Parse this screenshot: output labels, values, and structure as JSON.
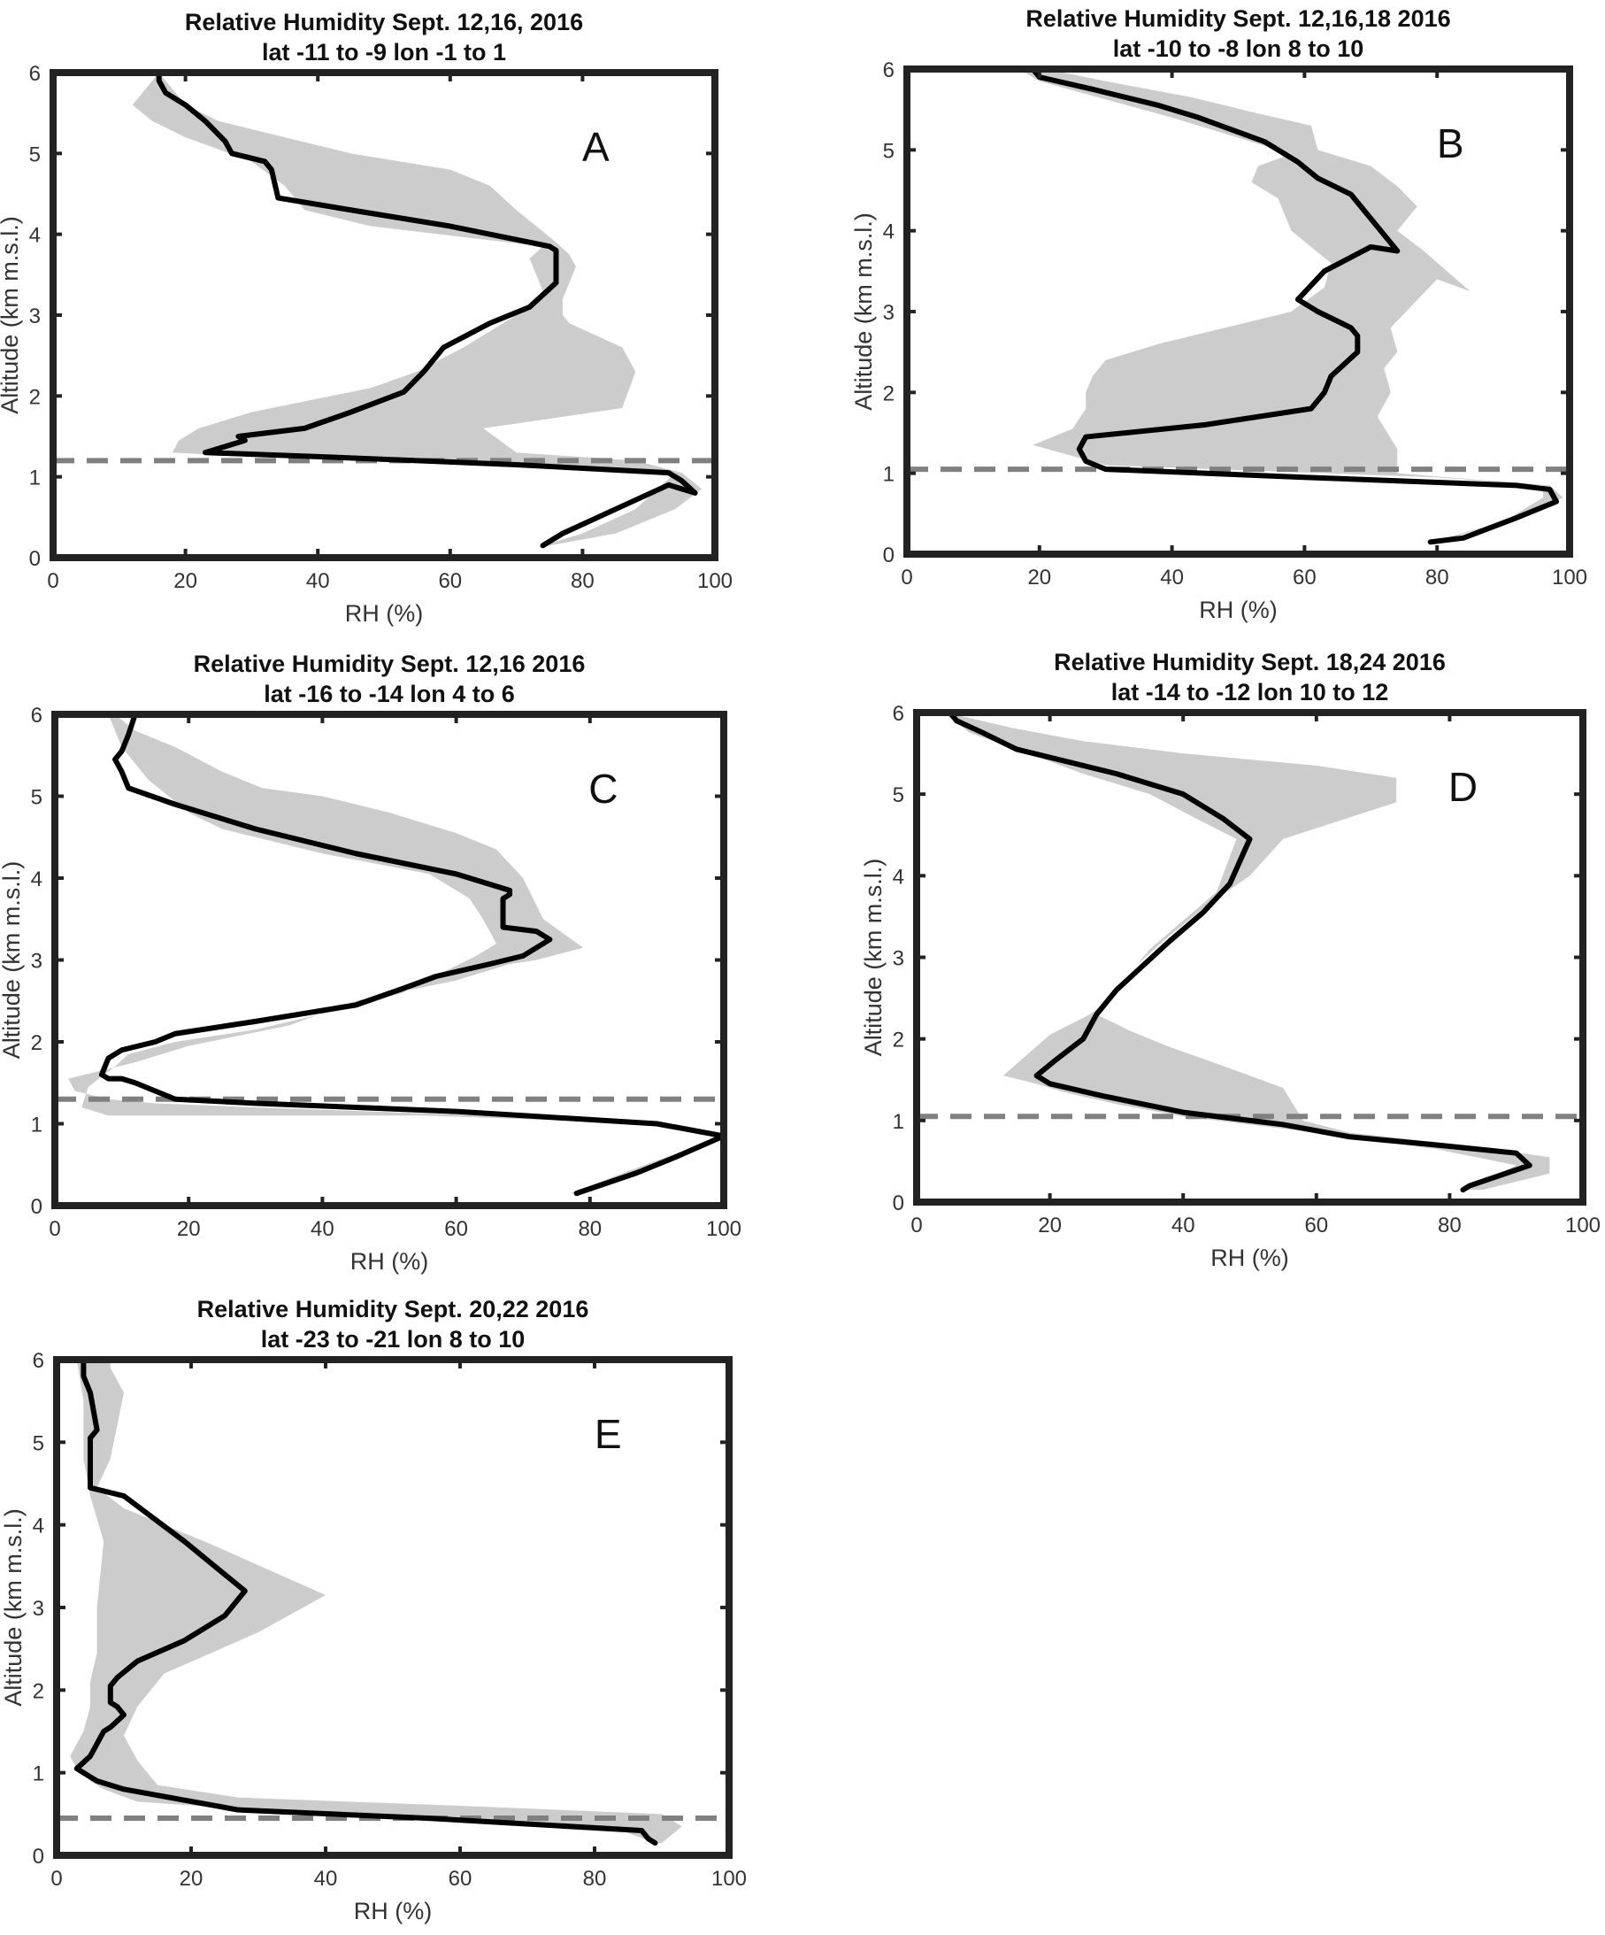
{
  "figure": {
    "background": "#ffffff"
  },
  "style": {
    "envelope_color": "#cccccc",
    "line_color": "#000000",
    "dash_color": "#808080",
    "frame_color": "#222222"
  },
  "chart_data": [
    {
      "type": "line",
      "panel_letter": "A",
      "title": [
        "Relative Humidity Sept. 12,16, 2016",
        "lat -11 to -9 lon -1 to 1"
      ],
      "xlabel": "RH (%)",
      "ylabel": "Altitude (km m.s.l.)",
      "xlim": [
        0,
        100
      ],
      "ylim": [
        0,
        6
      ],
      "xticks": [
        0,
        20,
        40,
        60,
        80,
        100
      ],
      "yticks": [
        0,
        1,
        2,
        3,
        4,
        5,
        6
      ],
      "boundary_layer_top_km": 1.2,
      "series": [
        {
          "kind": "mean",
          "x": [
            74,
            77,
            85,
            93,
            97,
            95,
            93,
            70,
            40,
            23,
            29,
            28,
            38,
            45,
            53,
            56,
            59,
            66,
            72,
            76,
            76,
            76,
            75,
            60,
            45,
            34,
            33,
            32,
            27,
            26,
            23,
            20,
            17,
            16,
            16
          ],
          "y": [
            0.15,
            0.3,
            0.6,
            0.9,
            0.8,
            0.95,
            1.05,
            1.15,
            1.25,
            1.3,
            1.45,
            1.5,
            1.6,
            1.8,
            2.05,
            2.3,
            2.6,
            2.9,
            3.1,
            3.4,
            3.6,
            3.8,
            3.85,
            4.1,
            4.3,
            4.45,
            4.8,
            4.9,
            5.0,
            5.15,
            5.4,
            5.6,
            5.75,
            5.9,
            6.0
          ]
        },
        {
          "kind": "envelope",
          "x_left": [
            74,
            80,
            88,
            92,
            94,
            60,
            30,
            18,
            19,
            22,
            30,
            48,
            55,
            62,
            70,
            74,
            72,
            74,
            48,
            38,
            35,
            30,
            25,
            20,
            15,
            12,
            16
          ],
          "y_left": [
            0.15,
            0.3,
            0.6,
            0.9,
            1.05,
            1.2,
            1.25,
            1.3,
            1.45,
            1.6,
            1.8,
            2.1,
            2.3,
            2.6,
            3.0,
            3.3,
            3.7,
            3.85,
            4.1,
            4.3,
            4.6,
            4.9,
            5.05,
            5.2,
            5.4,
            5.6,
            6.0
          ],
          "x_right": [
            75,
            85,
            94,
            98,
            95,
            88,
            70,
            65,
            86,
            88,
            86,
            78,
            77,
            77,
            78,
            79,
            78,
            76,
            73,
            70,
            68,
            66,
            60,
            45,
            35,
            25,
            20,
            16
          ],
          "y_right": [
            0.15,
            0.3,
            0.6,
            0.85,
            1.05,
            1.2,
            1.3,
            1.6,
            1.85,
            2.3,
            2.6,
            2.9,
            3.0,
            3.2,
            3.4,
            3.6,
            3.75,
            3.9,
            4.1,
            4.3,
            4.45,
            4.6,
            4.8,
            5.0,
            5.2,
            5.4,
            5.6,
            6.0
          ]
        }
      ]
    },
    {
      "type": "line",
      "panel_letter": "B",
      "title": [
        "Relative Humidity Sept. 12,16,18 2016",
        "lat -10 to -8 lon 8 to 10"
      ],
      "xlabel": "RH (%)",
      "ylabel": "Altitude (km m.s.l.)",
      "xlim": [
        0,
        100
      ],
      "ylim": [
        0,
        6
      ],
      "xticks": [
        0,
        20,
        40,
        60,
        80,
        100
      ],
      "yticks": [
        0,
        1,
        2,
        3,
        4,
        5,
        6
      ],
      "boundary_layer_top_km": 1.05,
      "series": [
        {
          "kind": "mean",
          "x": [
            79,
            84,
            92,
            98,
            97,
            92,
            60,
            30,
            27,
            26,
            27,
            45,
            61,
            63,
            64,
            68,
            68,
            67,
            62,
            59,
            63,
            70,
            74,
            67,
            62,
            59,
            58,
            54,
            44,
            38,
            28,
            20,
            19
          ],
          "y": [
            0.15,
            0.2,
            0.45,
            0.65,
            0.8,
            0.85,
            0.95,
            1.05,
            1.15,
            1.3,
            1.45,
            1.6,
            1.8,
            2.0,
            2.2,
            2.5,
            2.7,
            2.8,
            3.0,
            3.15,
            3.5,
            3.8,
            3.75,
            4.45,
            4.65,
            4.85,
            4.9,
            5.1,
            5.4,
            5.55,
            5.75,
            5.9,
            6.0
          ]
        },
        {
          "kind": "envelope",
          "x_left": [
            79,
            90,
            96,
            96,
            80,
            30,
            19,
            25,
            27,
            27,
            28,
            30,
            38,
            48,
            58,
            63,
            64,
            58,
            56,
            52,
            53,
            58,
            40,
            20,
            17
          ],
          "y_left": [
            0.15,
            0.4,
            0.7,
            0.85,
            0.95,
            1.1,
            1.35,
            1.55,
            1.8,
            2.0,
            2.2,
            2.4,
            2.6,
            2.8,
            3.0,
            3.3,
            3.6,
            4.0,
            4.4,
            4.6,
            4.8,
            4.95,
            5.4,
            5.85,
            6.0
          ],
          "x_right": [
            80,
            92,
            99,
            97,
            74,
            74,
            71,
            73,
            72,
            74,
            73,
            80,
            85,
            78,
            74,
            77,
            74,
            70,
            62,
            61,
            53,
            43,
            30,
            21
          ],
          "y_right": [
            0.15,
            0.45,
            0.7,
            0.85,
            1.0,
            1.3,
            1.7,
            2.0,
            2.3,
            2.5,
            2.8,
            3.4,
            3.25,
            3.75,
            4.0,
            4.3,
            4.55,
            4.8,
            5.0,
            5.3,
            5.45,
            5.65,
            5.85,
            6.0
          ]
        }
      ]
    },
    {
      "type": "line",
      "panel_letter": "C",
      "title": [
        "Relative Humidity Sept. 12,16 2016",
        "lat -16 to -14 lon 4 to 6"
      ],
      "xlabel": "RH (%)",
      "ylabel": "Altitude (km m.s.l.)",
      "xlim": [
        0,
        100
      ],
      "ylim": [
        0,
        6
      ],
      "xticks": [
        0,
        20,
        40,
        60,
        80,
        100
      ],
      "yticks": [
        0,
        1,
        2,
        3,
        4,
        5,
        6
      ],
      "boundary_layer_top_km": 1.3,
      "series": [
        {
          "kind": "mean",
          "x": [
            78,
            87,
            93,
            100,
            90,
            60,
            30,
            18,
            15,
            12,
            10,
            8,
            7,
            8,
            10,
            15,
            18,
            30,
            45,
            52,
            57,
            65,
            70,
            74,
            72,
            67,
            67,
            68,
            68,
            60,
            45,
            30,
            18,
            11,
            10,
            9,
            10,
            11,
            12
          ],
          "y": [
            0.15,
            0.4,
            0.6,
            0.85,
            1.0,
            1.15,
            1.25,
            1.3,
            1.4,
            1.5,
            1.55,
            1.55,
            1.6,
            1.8,
            1.9,
            2.0,
            2.1,
            2.25,
            2.45,
            2.65,
            2.8,
            2.95,
            3.05,
            3.25,
            3.35,
            3.4,
            3.75,
            3.8,
            3.85,
            4.05,
            4.3,
            4.6,
            4.9,
            5.1,
            5.3,
            5.45,
            5.55,
            5.75,
            6.0
          ]
        },
        {
          "kind": "envelope",
          "x_left": [
            77,
            85,
            100,
            90,
            55,
            20,
            8,
            4,
            5,
            9,
            11,
            18,
            30,
            43,
            52,
            58,
            63,
            66,
            64,
            62,
            56,
            40,
            25,
            20,
            14,
            10,
            8
          ],
          "y_left": [
            0.15,
            0.4,
            0.85,
            1.0,
            1.1,
            1.1,
            1.1,
            1.2,
            1.45,
            1.7,
            1.85,
            2.0,
            2.15,
            2.4,
            2.6,
            2.85,
            3.05,
            3.2,
            3.5,
            3.75,
            4.05,
            4.3,
            4.6,
            4.8,
            5.2,
            5.6,
            6.0
          ],
          "x_right": [
            78,
            88,
            95,
            100,
            90,
            65,
            30,
            15,
            8,
            3,
            2,
            12,
            20,
            35,
            45,
            60,
            68,
            72,
            79,
            73,
            70,
            66,
            60,
            50,
            40,
            31,
            25,
            18,
            12,
            9
          ],
          "y_right": [
            0.15,
            0.45,
            0.65,
            0.85,
            1.0,
            1.1,
            1.2,
            1.25,
            1.3,
            1.4,
            1.55,
            1.75,
            1.95,
            2.2,
            2.5,
            2.75,
            2.95,
            3.0,
            3.15,
            3.5,
            4.0,
            4.35,
            4.55,
            4.8,
            5.0,
            5.1,
            5.3,
            5.6,
            5.8,
            6.0
          ]
        }
      ]
    },
    {
      "type": "line",
      "panel_letter": "D",
      "title": [
        "Relative Humidity Sept. 18,24 2016",
        "lat -14 to -12 lon 10 to 12"
      ],
      "xlabel": "RH (%)",
      "ylabel": "Altitude (km m.s.l.)",
      "xlim": [
        0,
        100
      ],
      "ylim": [
        0,
        6
      ],
      "xticks": [
        0,
        20,
        40,
        60,
        80,
        100
      ],
      "yticks": [
        0,
        1,
        2,
        3,
        4,
        5,
        6
      ],
      "boundary_layer_top_km": 1.05,
      "series": [
        {
          "kind": "mean",
          "x": [
            82,
            83,
            92,
            90,
            78,
            65,
            55,
            40,
            28,
            20,
            18,
            21,
            25,
            27,
            30,
            34,
            38,
            43,
            47,
            50,
            46,
            40,
            30,
            15,
            10,
            6,
            5
          ],
          "y": [
            0.15,
            0.2,
            0.45,
            0.6,
            0.7,
            0.8,
            0.95,
            1.1,
            1.3,
            1.45,
            1.55,
            1.75,
            2.0,
            2.3,
            2.6,
            2.9,
            3.2,
            3.55,
            3.9,
            4.45,
            4.7,
            5.0,
            5.25,
            5.55,
            5.75,
            5.9,
            6.0
          ]
        },
        {
          "kind": "envelope",
          "x_left": [
            82,
            90,
            78,
            60,
            40,
            30,
            22,
            18,
            13,
            20,
            26,
            30,
            32,
            35,
            40,
            45,
            48,
            42,
            35,
            25,
            15,
            8,
            4
          ],
          "y_left": [
            0.15,
            0.45,
            0.65,
            0.85,
            1.05,
            1.2,
            1.35,
            1.45,
            1.55,
            2.05,
            2.3,
            2.55,
            2.8,
            3.1,
            3.45,
            3.8,
            4.45,
            4.7,
            5.0,
            5.25,
            5.55,
            5.75,
            6.0
          ],
          "x_right": [
            85,
            95,
            95,
            82,
            65,
            58,
            55,
            45,
            38,
            32,
            27,
            30,
            33,
            37,
            43,
            50,
            55,
            72,
            72,
            60,
            40,
            25,
            15,
            7,
            5
          ],
          "y_right": [
            0.15,
            0.35,
            0.55,
            0.7,
            0.85,
            1.0,
            1.4,
            1.7,
            1.9,
            2.1,
            2.3,
            2.6,
            2.9,
            3.2,
            3.6,
            4.0,
            4.45,
            4.9,
            5.2,
            5.35,
            5.5,
            5.65,
            5.8,
            5.95,
            6.0
          ]
        }
      ]
    },
    {
      "type": "line",
      "panel_letter": "E",
      "title": [
        "Relative Humidity Sept. 20,22 2016",
        "lat -23 to -21 lon 8 to 10"
      ],
      "xlabel": "RH (%)",
      "ylabel": "Altitude (km m.s.l.)",
      "xlim": [
        0,
        100
      ],
      "ylim": [
        0,
        6
      ],
      "xticks": [
        0,
        20,
        40,
        60,
        80,
        100
      ],
      "yticks": [
        0,
        1,
        2,
        3,
        4,
        5,
        6
      ],
      "boundary_layer_top_km": 0.45,
      "series": [
        {
          "kind": "mean",
          "x": [
            89,
            88,
            87,
            55,
            27,
            10,
            6,
            4,
            3,
            5,
            7,
            8,
            10,
            9,
            8,
            8,
            9,
            12,
            19,
            25,
            28,
            19,
            10,
            5,
            5,
            6,
            5,
            4,
            4,
            4
          ],
          "y": [
            0.15,
            0.2,
            0.3,
            0.45,
            0.55,
            0.8,
            0.9,
            1.0,
            1.05,
            1.2,
            1.5,
            1.55,
            1.7,
            1.8,
            1.85,
            2.05,
            2.15,
            2.35,
            2.6,
            2.9,
            3.2,
            3.8,
            4.35,
            4.45,
            5.05,
            5.15,
            5.6,
            5.8,
            5.95,
            6.0
          ]
        },
        {
          "kind": "envelope",
          "x_left": [
            89,
            84,
            62,
            30,
            12,
            7,
            5,
            3,
            2,
            4,
            5,
            5,
            6,
            6,
            7,
            5,
            4,
            4,
            3
          ],
          "y_left": [
            0.15,
            0.3,
            0.45,
            0.55,
            0.65,
            0.8,
            0.9,
            1.05,
            1.2,
            1.5,
            1.8,
            2.1,
            2.45,
            3.0,
            3.8,
            4.35,
            4.8,
            5.5,
            6.0
          ],
          "x_right": [
            90,
            93,
            90,
            60,
            27,
            15,
            12,
            10,
            12,
            16,
            30,
            40,
            22,
            10,
            6,
            8,
            9,
            10,
            8,
            8
          ],
          "y_right": [
            0.15,
            0.35,
            0.5,
            0.6,
            0.7,
            0.85,
            1.15,
            1.45,
            1.8,
            2.2,
            2.7,
            3.15,
            3.8,
            4.2,
            4.45,
            4.8,
            5.2,
            5.6,
            5.9,
            6.0
          ]
        }
      ]
    }
  ]
}
